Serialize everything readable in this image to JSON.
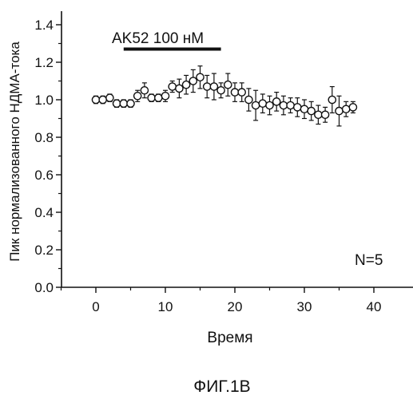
{
  "chart_data": {
    "type": "scatter",
    "title": "",
    "caption": "ФИГ.1В",
    "xlabel": "Время",
    "ylabel": "Пик нормализованного НДМА-тока",
    "xlim": [
      -5,
      43
    ],
    "ylim": [
      0,
      1.5
    ],
    "xticks": [
      "0",
      "10",
      "20",
      "30",
      "40"
    ],
    "yticks": [
      "0.0",
      "0.2",
      "0.4",
      "0.6",
      "0.8",
      "1.0",
      "1.2",
      "1.4"
    ],
    "grid": false,
    "annotation": "N=5",
    "treatment": {
      "label": "AK52 100 нМ",
      "x_start": 4,
      "x_end": 18,
      "y": 1.27
    },
    "series": [
      {
        "marker": "open-circle",
        "x": [
          0,
          1,
          2,
          3,
          4,
          5,
          6,
          7,
          8,
          9,
          10,
          11,
          12,
          13,
          14,
          15,
          16,
          17,
          18,
          19,
          20,
          21,
          22,
          23,
          24,
          25,
          26,
          27,
          28,
          29,
          30,
          31,
          32,
          33,
          34,
          35,
          36,
          37
        ],
        "y": [
          1.0,
          1.0,
          1.01,
          0.98,
          0.98,
          0.98,
          1.02,
          1.05,
          1.01,
          1.01,
          1.02,
          1.07,
          1.06,
          1.08,
          1.1,
          1.12,
          1.07,
          1.07,
          1.05,
          1.08,
          1.04,
          1.04,
          1.0,
          0.97,
          0.98,
          0.97,
          0.99,
          0.97,
          0.97,
          0.96,
          0.95,
          0.94,
          0.92,
          0.92,
          1.0,
          0.94,
          0.95,
          0.96
        ],
        "err": [
          0.02,
          0.02,
          0.02,
          0.02,
          0.02,
          0.02,
          0.03,
          0.04,
          0.02,
          0.02,
          0.03,
          0.03,
          0.05,
          0.05,
          0.06,
          0.06,
          0.06,
          0.07,
          0.04,
          0.06,
          0.05,
          0.05,
          0.06,
          0.08,
          0.05,
          0.05,
          0.05,
          0.05,
          0.04,
          0.05,
          0.05,
          0.05,
          0.05,
          0.04,
          0.07,
          0.08,
          0.04,
          0.03
        ]
      }
    ]
  }
}
